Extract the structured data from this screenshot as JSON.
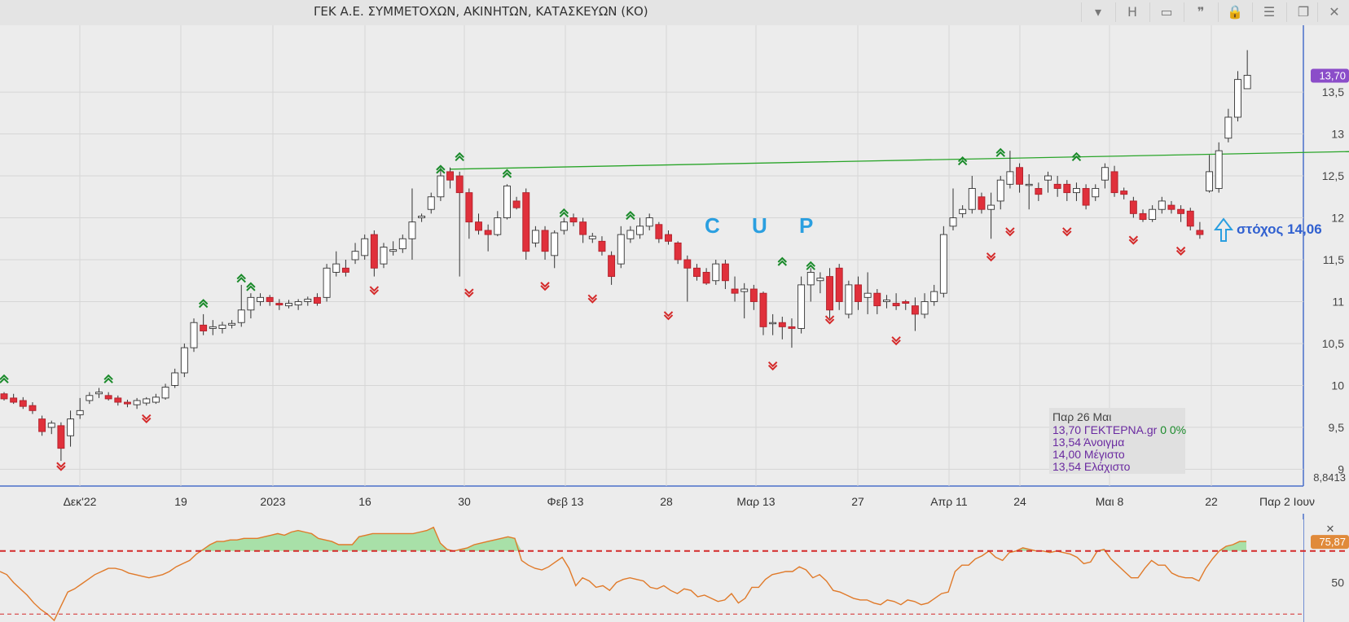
{
  "window": {
    "title": "ΓΕΚ  Α.Ε. ΣΥΜΜΕΤΟΧΩΝ, ΑΚΙΝΗΤΩΝ, ΚΑΤΑΣΚΕΥΩΝ (ΚΟ)",
    "toolbar": [
      {
        "name": "dropdown-chevron-icon",
        "glyph": "▾"
      },
      {
        "name": "period-h-button",
        "glyph": "H"
      },
      {
        "name": "panel-icon",
        "glyph": "▭"
      },
      {
        "name": "comment-icon",
        "glyph": "❞"
      },
      {
        "name": "lock-icon",
        "glyph": "🔒"
      },
      {
        "name": "menu-icon",
        "glyph": "☰"
      },
      {
        "name": "restore-window-icon",
        "glyph": "❐"
      },
      {
        "name": "close-window-icon",
        "glyph": "✕"
      }
    ]
  },
  "chart_data": {
    "type": "candlestick",
    "price_axis": {
      "ticks": [
        "9",
        "9,5",
        "10",
        "10,5",
        "11",
        "11,5",
        "12",
        "12,5",
        "13",
        "13,5"
      ],
      "min_label": "8,8413",
      "range": [
        8.8,
        14.2
      ]
    },
    "last_price_label": "13,70",
    "date_ticks": [
      "Δεκ'22",
      "19",
      "2023",
      "16",
      "30",
      "Φεβ 13",
      "28",
      "Μαρ 13",
      "27",
      "Απρ 11",
      "24",
      "Μαι 8",
      "22",
      "Παρ 2 Ιουν"
    ],
    "candles": [
      [
        9.9,
        9.92,
        9.82,
        9.84
      ],
      [
        9.85,
        9.9,
        9.78,
        9.8
      ],
      [
        9.82,
        9.86,
        9.72,
        9.75
      ],
      [
        9.76,
        9.8,
        9.66,
        9.7
      ],
      [
        9.6,
        9.64,
        9.4,
        9.45
      ],
      [
        9.5,
        9.58,
        9.42,
        9.55
      ],
      [
        9.52,
        9.56,
        9.1,
        9.25
      ],
      [
        9.4,
        9.7,
        9.27,
        9.6
      ],
      [
        9.65,
        9.85,
        9.6,
        9.7
      ],
      [
        9.82,
        9.92,
        9.78,
        9.88
      ],
      [
        9.9,
        9.97,
        9.85,
        9.92
      ],
      [
        9.88,
        9.92,
        9.82,
        9.84
      ],
      [
        9.85,
        9.88,
        9.76,
        9.8
      ],
      [
        9.8,
        9.83,
        9.74,
        9.78
      ],
      [
        9.77,
        9.85,
        9.72,
        9.82
      ],
      [
        9.79,
        9.86,
        9.76,
        9.84
      ],
      [
        9.8,
        9.9,
        9.78,
        9.86
      ],
      [
        9.85,
        10.02,
        9.83,
        9.98
      ],
      [
        10.0,
        10.2,
        9.97,
        10.15
      ],
      [
        10.15,
        10.5,
        10.1,
        10.45
      ],
      [
        10.45,
        10.8,
        10.4,
        10.75
      ],
      [
        10.72,
        10.85,
        10.6,
        10.65
      ],
      [
        10.68,
        10.78,
        10.6,
        10.7
      ],
      [
        10.68,
        10.76,
        10.62,
        10.72
      ],
      [
        10.72,
        10.78,
        10.68,
        10.74
      ],
      [
        10.75,
        11.2,
        10.7,
        10.9
      ],
      [
        10.9,
        11.1,
        10.8,
        11.05
      ],
      [
        11.0,
        11.1,
        10.95,
        11.05
      ],
      [
        11.05,
        11.08,
        10.95,
        11.0
      ],
      [
        10.98,
        11.03,
        10.9,
        10.96
      ],
      [
        10.95,
        11.02,
        10.92,
        10.98
      ],
      [
        10.96,
        11.03,
        10.9,
        11.0
      ],
      [
        11.0,
        11.06,
        10.95,
        11.03
      ],
      [
        11.05,
        11.1,
        10.95,
        10.98
      ],
      [
        11.05,
        11.45,
        11.0,
        11.4
      ],
      [
        11.35,
        11.6,
        11.3,
        11.45
      ],
      [
        11.4,
        11.5,
        11.3,
        11.35
      ],
      [
        11.5,
        11.7,
        11.45,
        11.6
      ],
      [
        11.55,
        11.8,
        11.5,
        11.75
      ],
      [
        11.8,
        11.85,
        11.3,
        11.4
      ],
      [
        11.45,
        11.7,
        11.4,
        11.65
      ],
      [
        11.6,
        11.72,
        11.55,
        11.62
      ],
      [
        11.63,
        11.8,
        11.58,
        11.75
      ],
      [
        11.75,
        12.35,
        11.5,
        11.95
      ],
      [
        12.0,
        12.05,
        11.95,
        12.02
      ],
      [
        12.1,
        12.3,
        12.05,
        12.25
      ],
      [
        12.25,
        12.6,
        12.2,
        12.5
      ],
      [
        12.55,
        12.6,
        12.35,
        12.45
      ],
      [
        12.5,
        12.55,
        11.3,
        12.3
      ],
      [
        12.3,
        12.35,
        11.75,
        11.95
      ],
      [
        11.95,
        12.05,
        11.8,
        11.85
      ],
      [
        11.85,
        11.92,
        11.6,
        11.8
      ],
      [
        11.8,
        12.08,
        11.78,
        12.0
      ],
      [
        12.0,
        12.4,
        11.98,
        12.38
      ],
      [
        12.2,
        12.25,
        12.1,
        12.12
      ],
      [
        12.3,
        12.35,
        11.5,
        11.6
      ],
      [
        11.7,
        11.9,
        11.65,
        11.85
      ],
      [
        11.85,
        11.9,
        11.5,
        11.6
      ],
      [
        11.55,
        11.85,
        11.4,
        11.82
      ],
      [
        11.85,
        12.0,
        11.8,
        11.95
      ],
      [
        12.0,
        12.05,
        11.9,
        11.95
      ],
      [
        11.95,
        12.0,
        11.7,
        11.8
      ],
      [
        11.75,
        11.82,
        11.7,
        11.78
      ],
      [
        11.72,
        11.78,
        11.55,
        11.6
      ],
      [
        11.55,
        11.6,
        11.2,
        11.3
      ],
      [
        11.45,
        11.9,
        11.4,
        11.8
      ],
      [
        11.75,
        11.9,
        11.7,
        11.85
      ],
      [
        11.8,
        12.0,
        11.75,
        11.9
      ],
      [
        11.9,
        12.05,
        11.85,
        12.0
      ],
      [
        11.92,
        11.95,
        11.7,
        11.75
      ],
      [
        11.8,
        11.85,
        11.68,
        11.72
      ],
      [
        11.7,
        11.72,
        11.45,
        11.5
      ],
      [
        11.5,
        11.55,
        11.0,
        11.4
      ],
      [
        11.4,
        11.45,
        11.25,
        11.3
      ],
      [
        11.35,
        11.4,
        11.2,
        11.22
      ],
      [
        11.25,
        11.5,
        11.2,
        11.45
      ],
      [
        11.45,
        11.5,
        11.15,
        11.25
      ],
      [
        11.15,
        11.3,
        11.0,
        11.1
      ],
      [
        11.12,
        11.22,
        10.8,
        11.15
      ],
      [
        11.15,
        11.2,
        10.9,
        11.0
      ],
      [
        11.1,
        11.12,
        10.6,
        10.7
      ],
      [
        10.75,
        10.85,
        10.6,
        10.75
      ],
      [
        10.75,
        10.82,
        10.55,
        10.7
      ],
      [
        10.7,
        10.8,
        10.45,
        10.68
      ],
      [
        10.68,
        11.3,
        10.62,
        11.2
      ],
      [
        11.2,
        11.4,
        11.0,
        11.35
      ],
      [
        11.25,
        11.35,
        11.1,
        11.28
      ],
      [
        11.3,
        11.4,
        10.8,
        10.9
      ],
      [
        11.4,
        11.45,
        10.9,
        11.0
      ],
      [
        10.85,
        11.25,
        10.8,
        11.2
      ],
      [
        11.2,
        11.3,
        10.9,
        11.0
      ],
      [
        11.05,
        11.35,
        10.85,
        11.1
      ],
      [
        11.1,
        11.15,
        10.85,
        10.95
      ],
      [
        11.0,
        11.08,
        10.92,
        11.02
      ],
      [
        10.98,
        11.1,
        10.9,
        10.95
      ],
      [
        11.0,
        11.02,
        10.9,
        10.98
      ],
      [
        10.95,
        11.05,
        10.65,
        10.85
      ],
      [
        10.85,
        11.1,
        10.8,
        11.0
      ],
      [
        11.0,
        11.2,
        10.95,
        11.12
      ],
      [
        11.1,
        11.9,
        11.05,
        11.8
      ],
      [
        11.9,
        12.35,
        11.85,
        12.0
      ],
      [
        12.05,
        12.15,
        12.0,
        12.1
      ],
      [
        12.1,
        12.5,
        12.05,
        12.35
      ],
      [
        12.25,
        12.3,
        12.05,
        12.1
      ],
      [
        12.1,
        12.3,
        11.75,
        12.15
      ],
      [
        12.2,
        12.5,
        12.1,
        12.45
      ],
      [
        12.4,
        12.8,
        12.35,
        12.55
      ],
      [
        12.6,
        12.65,
        12.3,
        12.4
      ],
      [
        12.4,
        12.52,
        12.1,
        12.4
      ],
      [
        12.35,
        12.42,
        12.2,
        12.28
      ],
      [
        12.45,
        12.55,
        12.3,
        12.5
      ],
      [
        12.4,
        12.5,
        12.25,
        12.35
      ],
      [
        12.4,
        12.45,
        12.2,
        12.3
      ],
      [
        12.3,
        12.42,
        12.2,
        12.35
      ],
      [
        12.35,
        12.4,
        12.1,
        12.15
      ],
      [
        12.25,
        12.4,
        12.2,
        12.35
      ],
      [
        12.45,
        12.65,
        12.35,
        12.6
      ],
      [
        12.55,
        12.62,
        12.25,
        12.3
      ],
      [
        12.32,
        12.36,
        12.22,
        12.28
      ],
      [
        12.2,
        12.25,
        12.0,
        12.05
      ],
      [
        12.05,
        12.1,
        11.95,
        11.98
      ],
      [
        11.98,
        12.15,
        11.95,
        12.1
      ],
      [
        12.1,
        12.25,
        12.05,
        12.2
      ],
      [
        12.15,
        12.2,
        12.05,
        12.1
      ],
      [
        12.1,
        12.15,
        11.95,
        12.05
      ],
      [
        12.08,
        12.12,
        11.85,
        11.9
      ],
      [
        11.85,
        11.95,
        11.75,
        11.8
      ],
      [
        12.32,
        12.75,
        12.3,
        12.55
      ],
      [
        12.35,
        12.9,
        12.3,
        12.8
      ],
      [
        12.95,
        13.3,
        12.9,
        13.2
      ],
      [
        13.2,
        13.75,
        13.15,
        13.65
      ],
      [
        13.54,
        14.0,
        13.54,
        13.7
      ]
    ],
    "resistance_line": {
      "from": [
        47,
        12.58
      ],
      "to": [
        137,
        12.78
      ],
      "color": "#2aa52a"
    },
    "arrows_up": [
      [
        0,
        10.1
      ],
      [
        11,
        10.1
      ],
      [
        21,
        11.0
      ],
      [
        25,
        11.3
      ],
      [
        26,
        11.2
      ],
      [
        46,
        12.6
      ],
      [
        48,
        12.75
      ],
      [
        53,
        12.55
      ],
      [
        59,
        12.08
      ],
      [
        66,
        12.05
      ],
      [
        82,
        11.5
      ],
      [
        85,
        11.45
      ],
      [
        101,
        12.7
      ],
      [
        105,
        12.8
      ],
      [
        113,
        12.75
      ]
    ],
    "arrows_down": [
      [
        6,
        9.05
      ],
      [
        15,
        9.62
      ],
      [
        39,
        11.15
      ],
      [
        49,
        11.12
      ],
      [
        57,
        11.2
      ],
      [
        62,
        11.05
      ],
      [
        70,
        10.85
      ],
      [
        81,
        10.25
      ],
      [
        87,
        10.8
      ],
      [
        94,
        10.55
      ],
      [
        104,
        11.55
      ],
      [
        106,
        11.85
      ],
      [
        112,
        11.85
      ],
      [
        119,
        11.75
      ],
      [
        124,
        11.62
      ]
    ],
    "annotations": {
      "pattern_label": "C U P",
      "target_label": "στόχος 14,06"
    },
    "info_box": {
      "date": "Παρ 26 Μαι",
      "close": "13,70",
      "symbol": "ΓΕΚΤΕΡΝΑ.gr",
      "change": "0 0%",
      "open_line": "13,54 Άνοιγμα",
      "high_line": "14,00 Μέγιστο",
      "low_line": "13,54 Ελάχιστο"
    },
    "indicator": {
      "value_label": "75,87",
      "tick_label": "50",
      "upper_level": 70,
      "lower_level": 30,
      "range": [
        25,
        90
      ],
      "values": [
        57,
        55,
        50,
        46,
        42,
        37,
        33,
        30,
        26,
        35,
        44,
        46,
        49,
        52,
        55,
        57,
        59,
        59,
        58,
        56,
        55,
        54,
        53,
        54,
        55,
        57,
        60,
        62,
        64,
        68,
        71,
        74,
        76,
        76,
        77,
        77,
        78,
        78,
        78,
        79,
        80,
        81,
        80,
        82,
        83,
        82,
        81,
        78,
        77,
        76,
        74,
        74,
        74,
        79,
        80,
        81,
        81,
        81,
        81,
        81,
        81,
        81,
        82,
        83,
        85,
        75,
        71,
        70,
        71,
        72,
        74,
        75,
        76,
        77,
        78,
        79,
        78,
        64,
        61,
        59,
        58,
        60,
        63,
        66,
        59,
        48,
        53,
        51,
        47,
        48,
        45,
        50,
        52,
        53,
        52,
        51,
        47,
        46,
        48,
        45,
        43,
        46,
        45,
        41,
        42,
        40,
        38,
        39,
        43,
        37,
        40,
        47,
        47,
        52,
        55,
        56,
        57,
        57,
        60,
        58,
        53,
        55,
        51,
        45,
        44,
        42,
        40,
        39,
        39,
        37,
        36,
        39,
        38,
        36,
        39,
        38,
        36,
        37,
        40,
        43,
        44,
        57,
        61,
        61,
        65,
        67,
        70,
        66,
        64,
        69,
        70,
        72,
        71,
        70,
        70,
        69,
        70,
        69,
        68,
        66,
        62,
        63,
        70,
        71,
        65,
        61,
        57,
        53,
        53,
        59,
        64,
        61,
        61,
        56,
        54,
        53,
        53,
        51,
        59,
        65,
        70,
        73,
        74,
        76,
        76
      ]
    },
    "colors": {
      "up": "#ffffff",
      "down": "#e0303b",
      "neutral": "#4a4a4a",
      "wick": "#333333",
      "indicator_line": "#e07a2a",
      "level": "#d42a2a",
      "fill": "#a8e0a8",
      "price_badge": "#8b4dc9",
      "rsi_badge": "#e08a3a",
      "annotation": "#2a9fe0",
      "target": "#3060d0"
    }
  }
}
